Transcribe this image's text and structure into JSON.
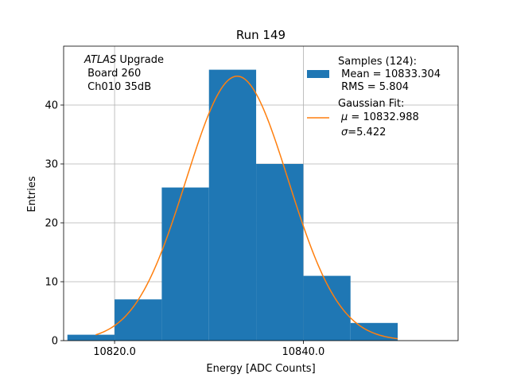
{
  "chart_data": {
    "type": "histogram",
    "title": "Run 149",
    "xlabel": "Energy [ADC Counts]",
    "ylabel": "Entries",
    "xlim": [
      10814.6,
      10856.4
    ],
    "ylim": [
      0,
      50
    ],
    "grid": true,
    "x_ticks": [
      10820,
      10840
    ],
    "x_tick_labels": [
      "10820.0",
      "10840.0"
    ],
    "y_ticks": [
      0,
      10,
      20,
      30,
      40
    ],
    "y_tick_labels": [
      "0",
      "10",
      "20",
      "30",
      "40"
    ],
    "bins": [
      {
        "left": 10815,
        "right": 10820,
        "count": 1
      },
      {
        "left": 10820,
        "right": 10825,
        "count": 7
      },
      {
        "left": 10825,
        "right": 10830,
        "count": 26
      },
      {
        "left": 10830,
        "right": 10835,
        "count": 46
      },
      {
        "left": 10835,
        "right": 10840,
        "count": 30
      },
      {
        "left": 10840,
        "right": 10845,
        "count": 11
      },
      {
        "left": 10845,
        "right": 10850,
        "count": 3
      }
    ],
    "fit": {
      "type": "gaussian",
      "mu": 10832.988,
      "sigma": 5.422,
      "amplitude": 44.9,
      "x_range": [
        10818,
        10850
      ]
    },
    "colors": {
      "bars": "#1f77b4",
      "fit": "#ff7f0e",
      "grid": "#b0b0b0"
    },
    "annotation": {
      "atlas": "ATLAS",
      "upgrade": " Upgrade",
      "board": " Board 260",
      "channel": " Ch010 35dB"
    },
    "legend": {
      "location": "top-right",
      "samples_header": "Samples (124):",
      "samples_mean": " Mean = 10833.304",
      "samples_rms": " RMS = 5.804",
      "fit_header": "Gaussian Fit:",
      "fit_mu_symbol": "μ",
      "fit_mu_value": " = 10832.988",
      "fit_sigma_symbol": "σ",
      "fit_sigma_value": "=5.422"
    }
  }
}
